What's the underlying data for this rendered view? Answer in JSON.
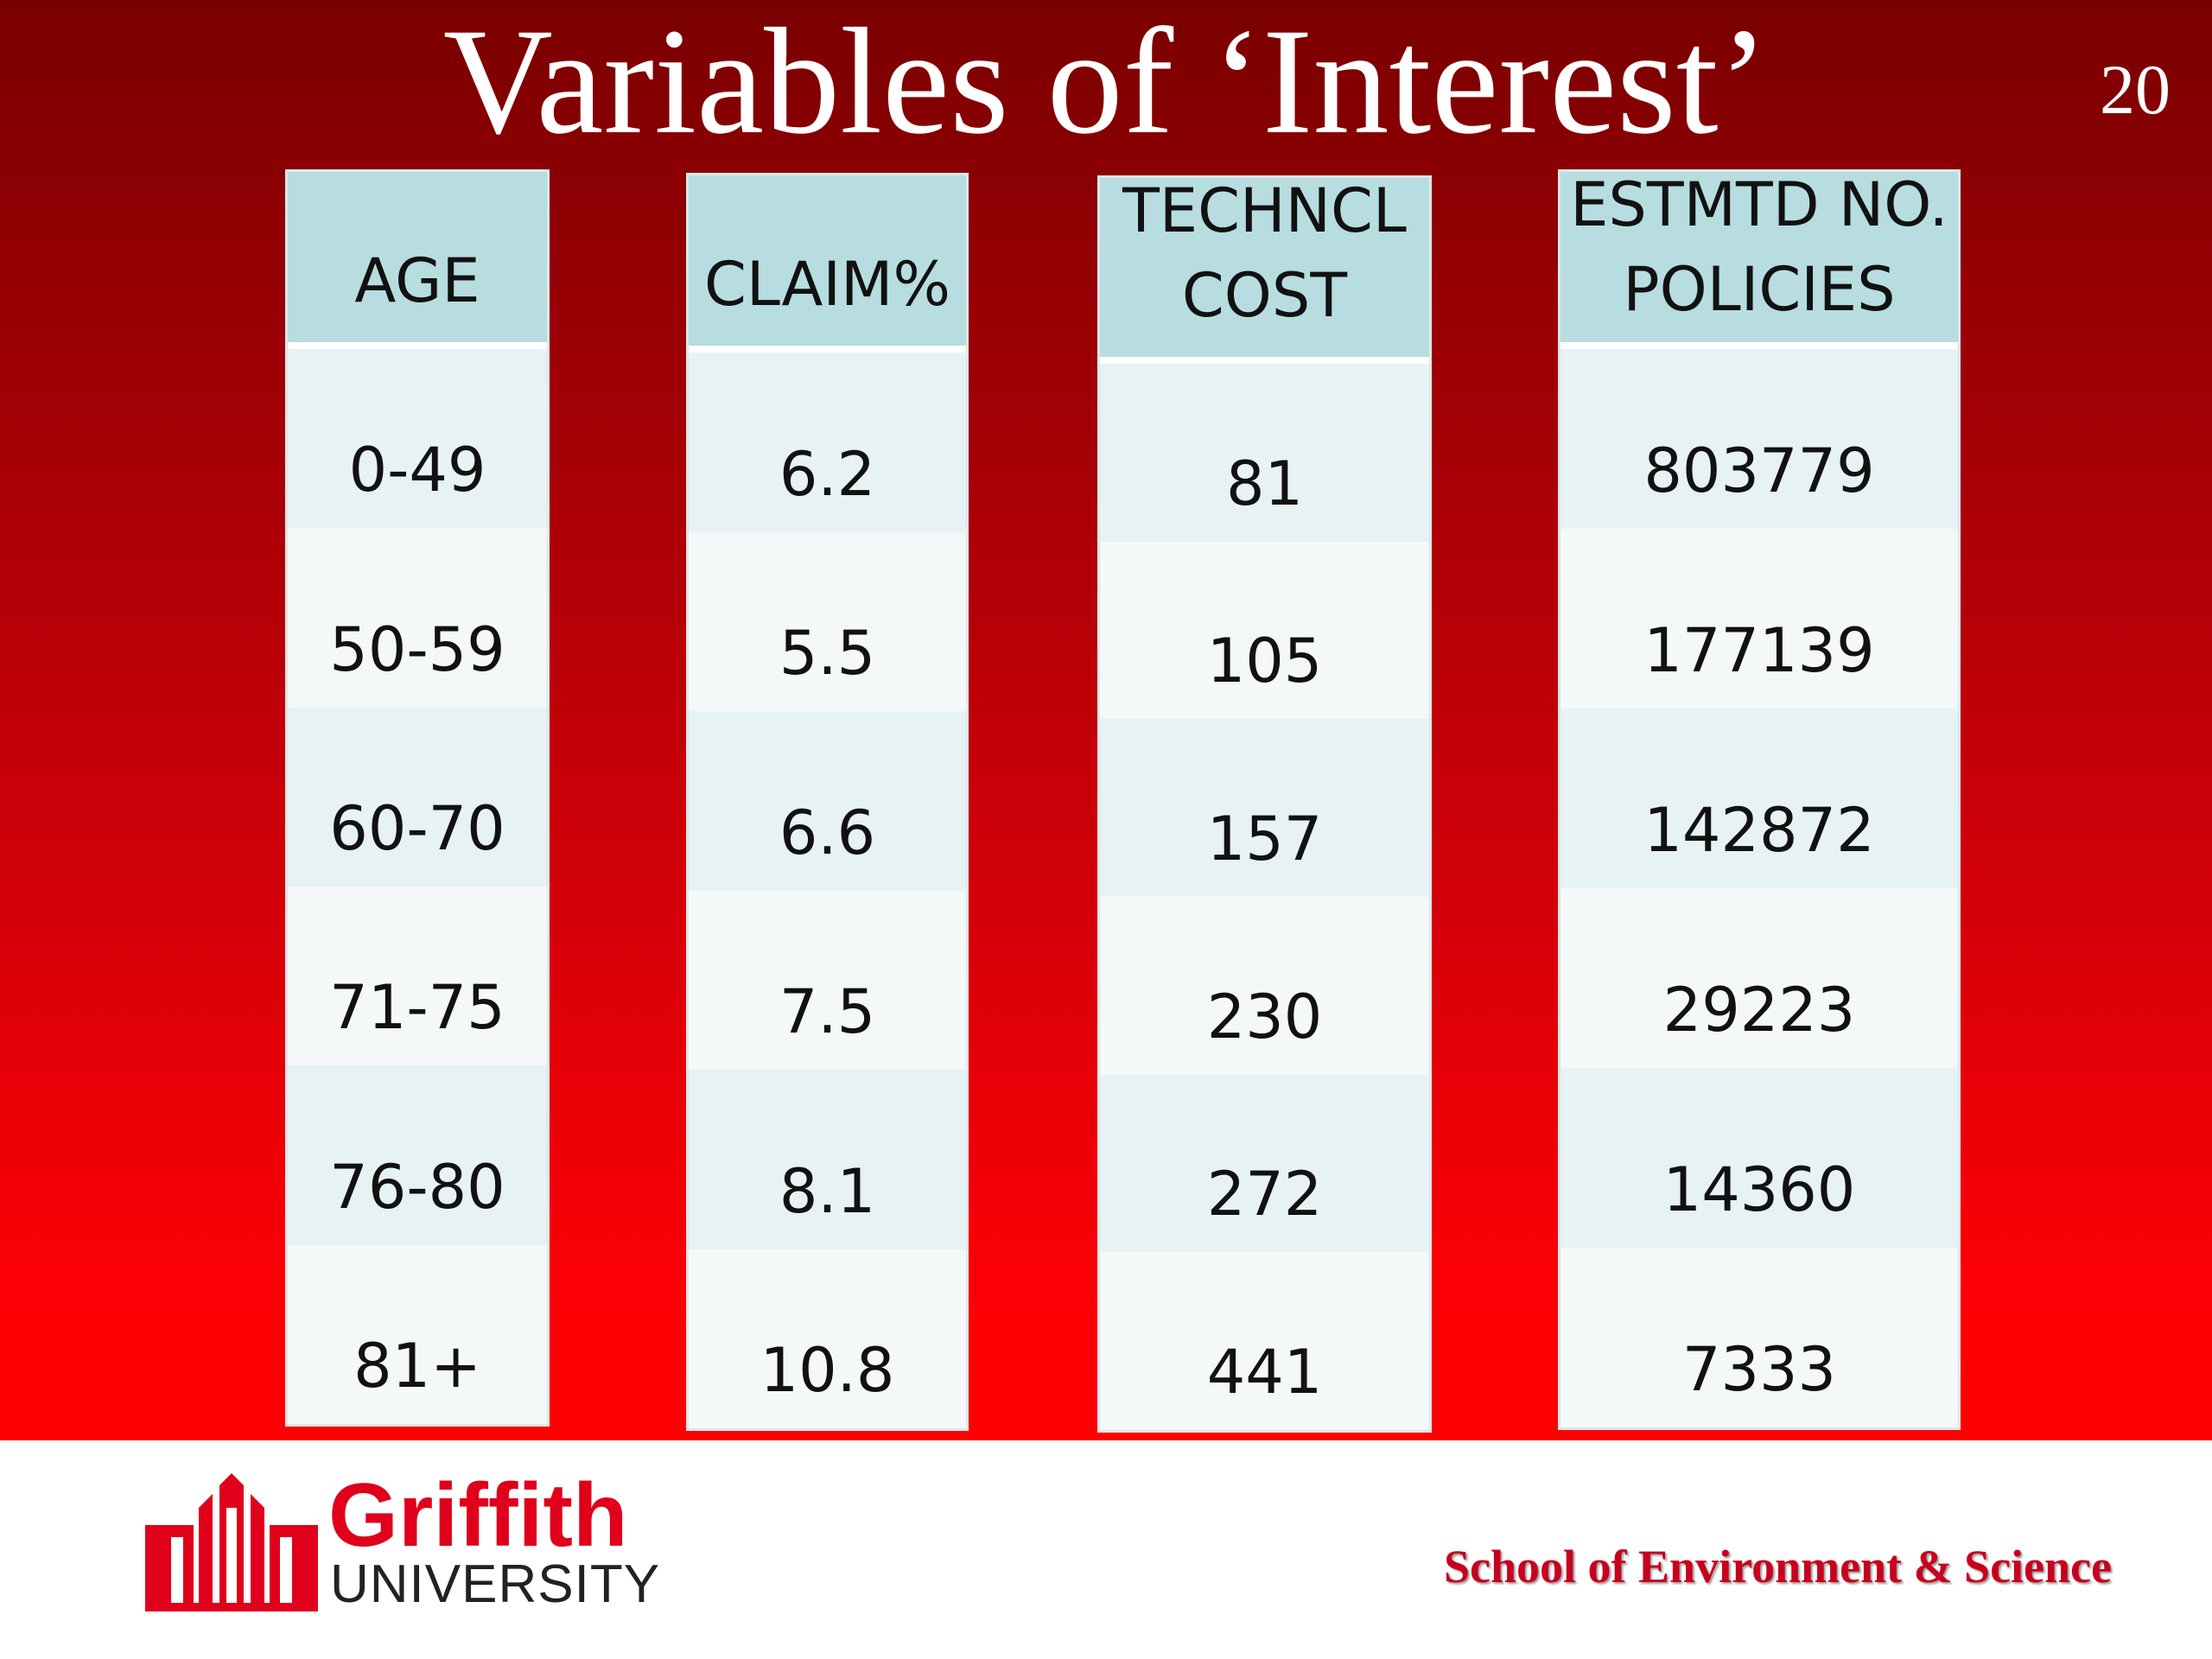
{
  "slide": {
    "title": "Variables of ‘Interest’",
    "page_number": "20"
  },
  "table": {
    "columns": [
      {
        "header_lines": [
          "AGE"
        ],
        "values": [
          "0-49",
          "50-59",
          "60-70",
          "71-75",
          "76-80",
          "81+"
        ]
      },
      {
        "header_lines": [
          "CLAIM%"
        ],
        "values": [
          "6.2",
          "5.5",
          "6.6",
          "7.5",
          "8.1",
          "10.8"
        ]
      },
      {
        "header_lines": [
          "TECHNCL",
          "COST"
        ],
        "values": [
          "81",
          "105",
          "157",
          "230",
          "272",
          "441"
        ]
      },
      {
        "header_lines": [
          "ESTMTD NO.",
          "POLICIES"
        ],
        "values": [
          "803779",
          "177139",
          "142872",
          "29223",
          "14360",
          "7333"
        ]
      }
    ]
  },
  "footer": {
    "logo_name": "Griffith",
    "logo_sub": "UNIVERSITY",
    "school": "School of Environment & Science"
  },
  "colors": {
    "slide_top": "#7a0000",
    "slide_bottom": "#ff0000",
    "header_fill": "#b7dde0",
    "row_fill_a": "#e6f2f3",
    "row_fill_b": "#f4f8f9",
    "brand_red": "#e0001b"
  }
}
